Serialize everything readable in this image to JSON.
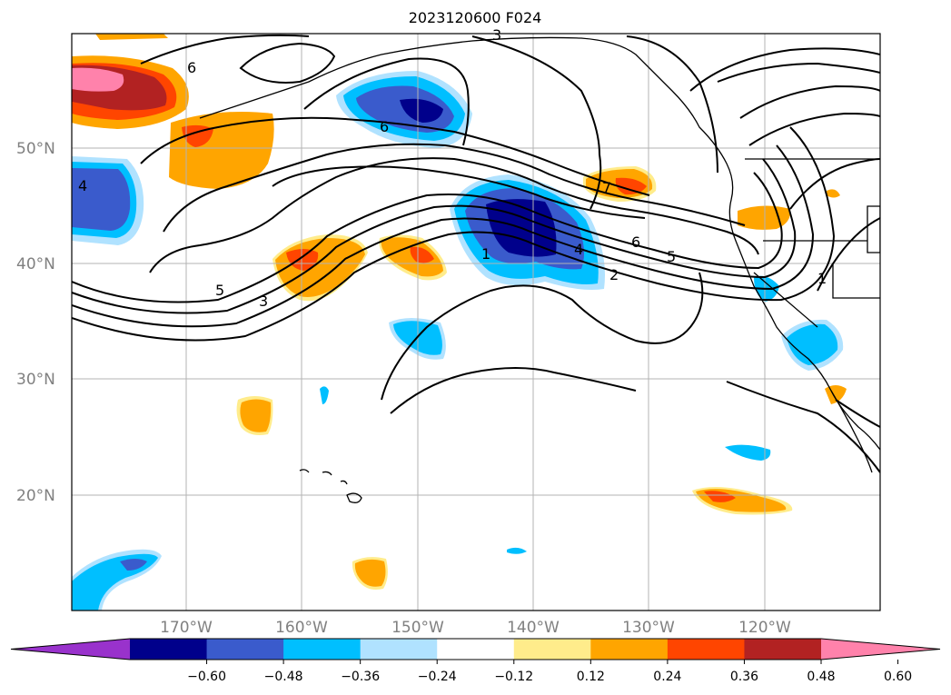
{
  "title": "2023120600 F024",
  "map": {
    "lat_labels": [
      "50°N",
      "40°N",
      "30°N",
      "20°N"
    ],
    "lon_labels": [
      "170°W",
      "160°W",
      "150°W",
      "140°W",
      "130°W",
      "120°W"
    ],
    "contour_labels": [
      "6",
      "4",
      "5",
      "3",
      "1",
      "4",
      "6",
      "7",
      "5",
      "2",
      "1",
      "7",
      "7",
      "6",
      "3"
    ]
  },
  "colorbar": {
    "colors": [
      "#9932cc",
      "#00008b",
      "#3a5bcc",
      "#00bfff",
      "#b0e2ff",
      "#ffffff",
      "#ffec8b",
      "#ffa500",
      "#ff4500",
      "#b22222",
      "#ff82ab"
    ],
    "tick_labels": [
      "−0.60",
      "−0.48",
      "−0.36",
      "−0.24",
      "−0.12",
      "0.12",
      "0.24",
      "0.36",
      "0.48",
      "0.60"
    ]
  },
  "colors": {
    "blue_dark": "#00008b",
    "blue_mid": "#3a5bcc",
    "blue_light": "#00bfff",
    "blue_pale": "#b0e2ff",
    "yellow": "#ffec8b",
    "orange": "#ffa500",
    "red_orange": "#ff4500",
    "dark_red": "#b22222",
    "pink": "#ff82ab"
  }
}
